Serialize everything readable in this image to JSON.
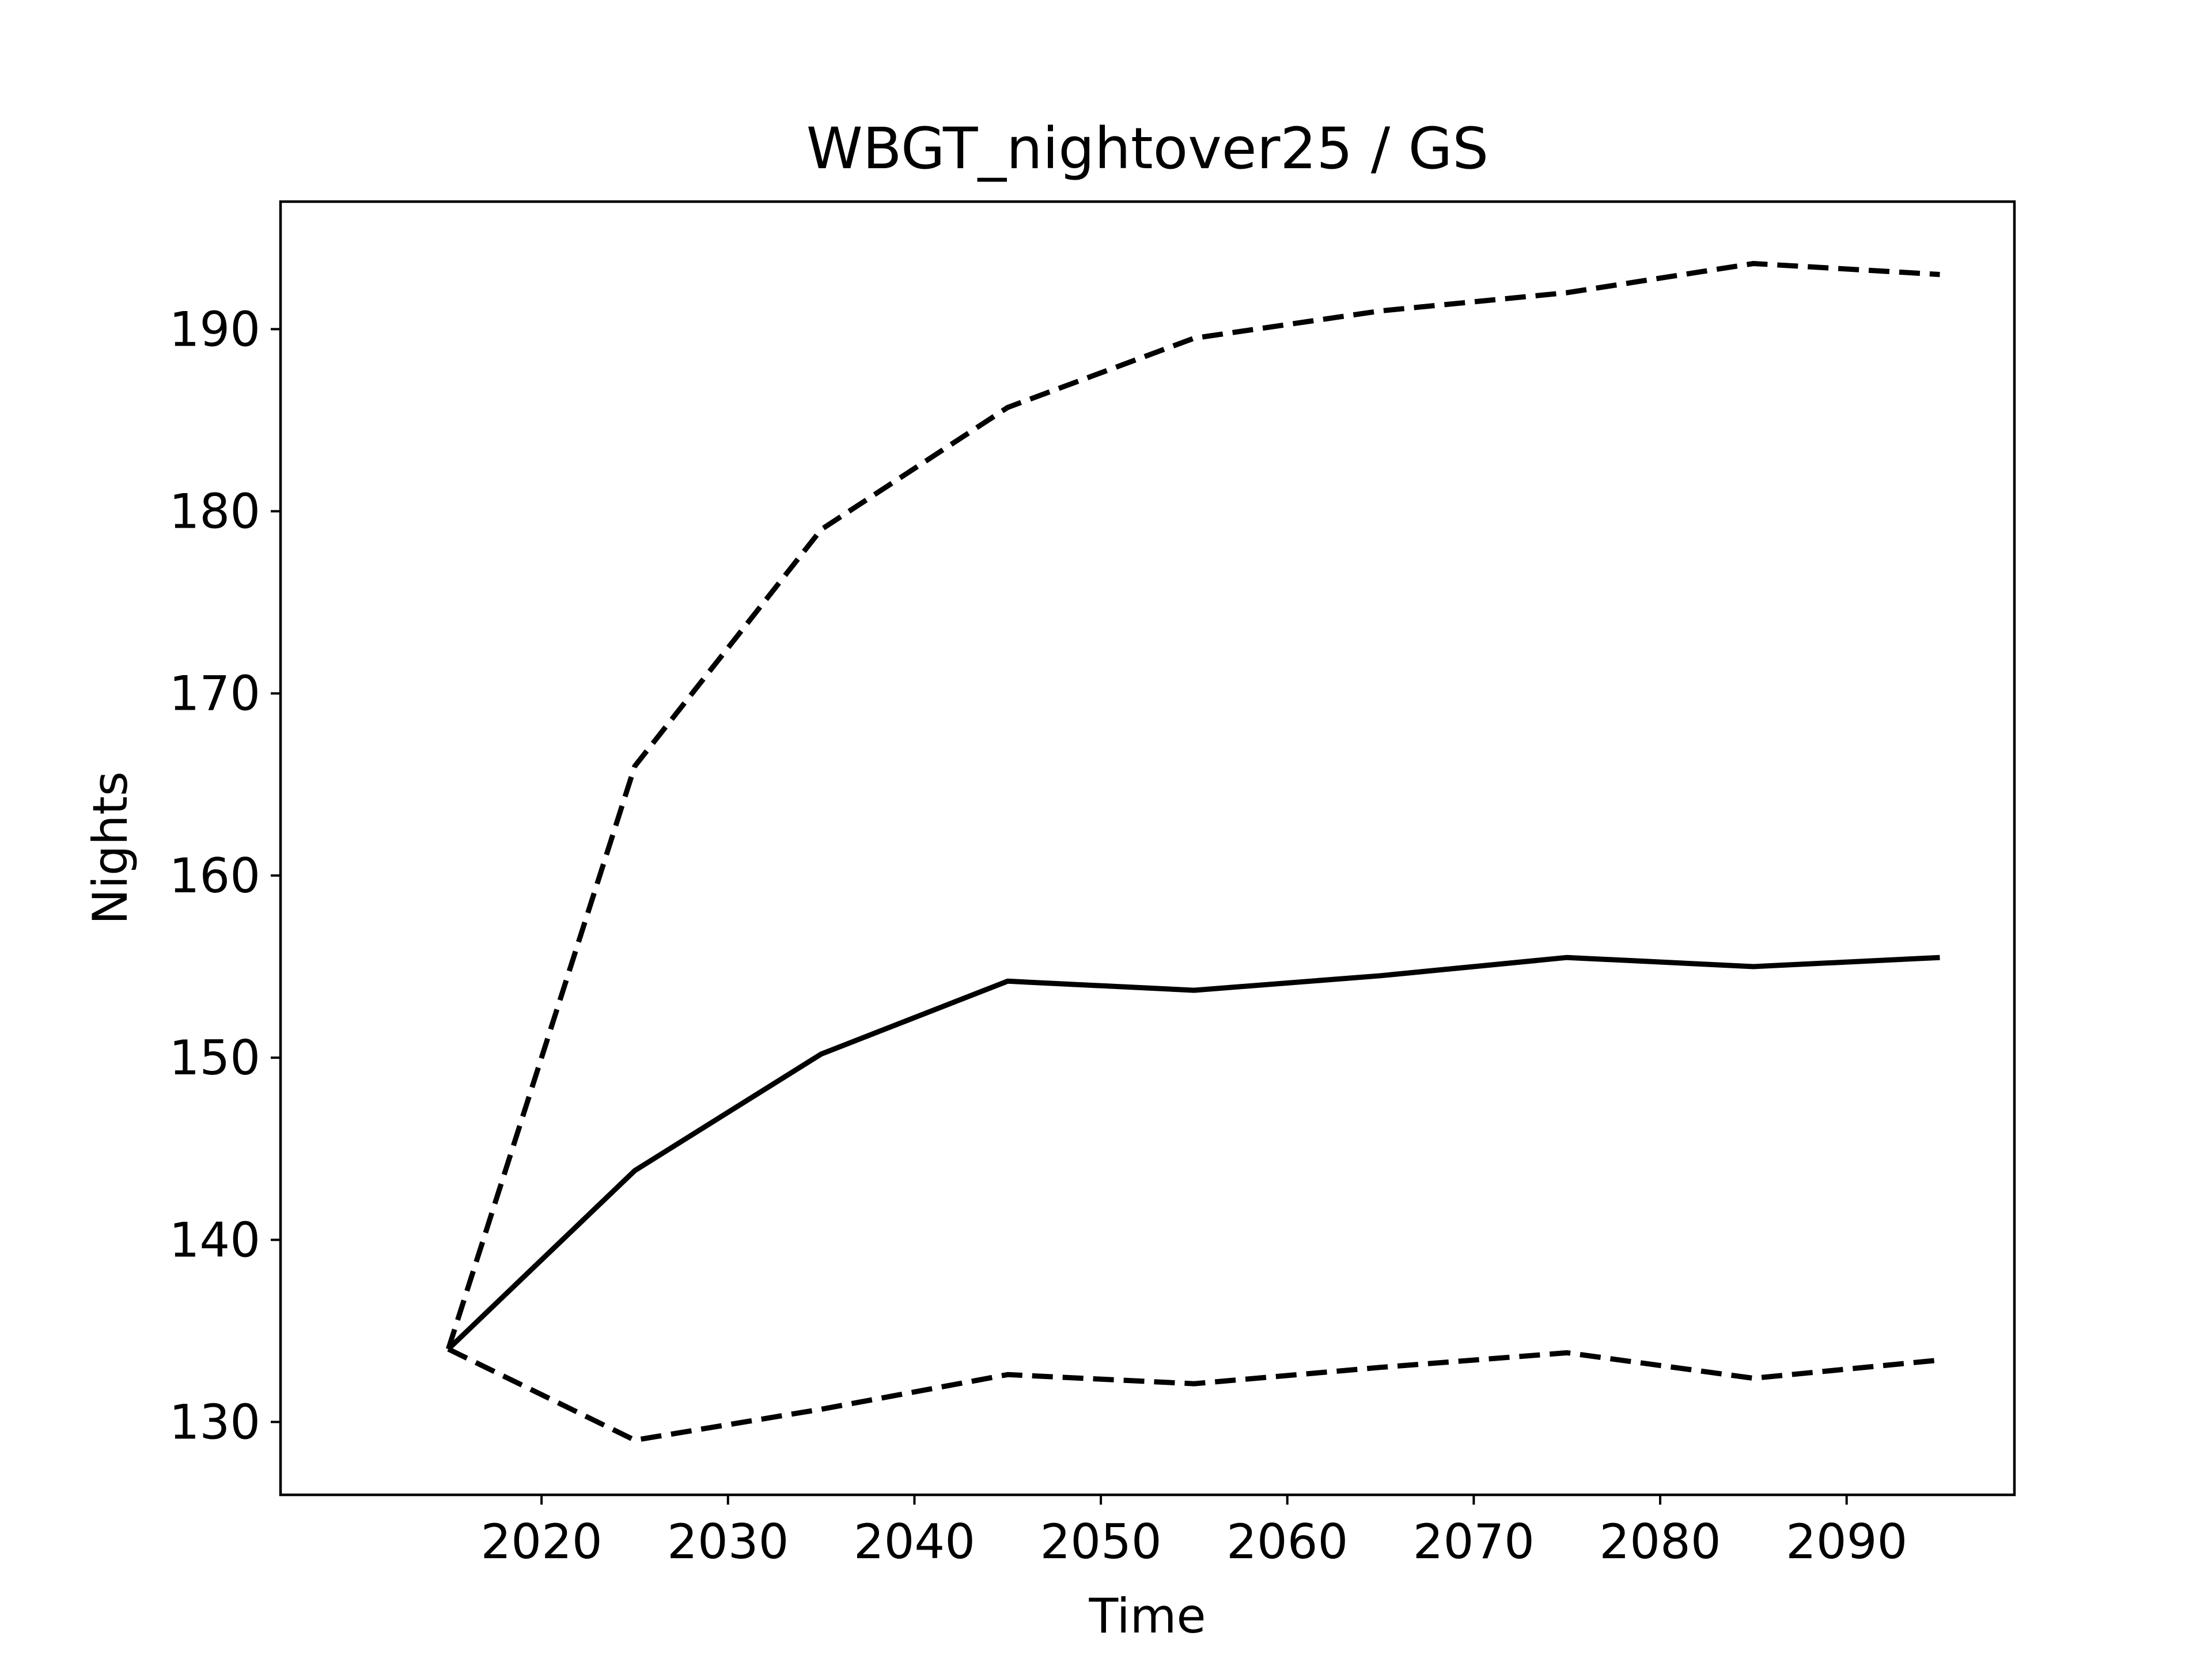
{
  "chart_data": {
    "type": "line",
    "title": "WBGT_nightover25 / GS",
    "xlabel": "Time",
    "ylabel": "Nights",
    "x": [
      2015,
      2025,
      2035,
      2045,
      2055,
      2065,
      2075,
      2085,
      2095
    ],
    "xlim": [
      2006,
      2099
    ],
    "ylim": [
      126,
      197
    ],
    "xticks": [
      2020,
      2030,
      2040,
      2050,
      2060,
      2070,
      2080,
      2090
    ],
    "yticks": [
      130,
      140,
      150,
      160,
      170,
      180,
      190
    ],
    "grid": false,
    "legend": "none",
    "series": [
      {
        "style": "dashed",
        "color": "#000000",
        "values": [
          134.0,
          166.0,
          179.0,
          185.7,
          189.5,
          191.0,
          192.0,
          193.6,
          193.0
        ]
      },
      {
        "style": "solid",
        "color": "#000000",
        "values": [
          134.0,
          143.8,
          150.2,
          154.2,
          153.7,
          154.5,
          155.5,
          155.0,
          155.5
        ]
      },
      {
        "style": "dashed",
        "color": "#000000",
        "values": [
          134.0,
          129.0,
          130.7,
          132.6,
          132.1,
          133.0,
          133.8,
          132.4,
          133.4
        ]
      }
    ]
  }
}
